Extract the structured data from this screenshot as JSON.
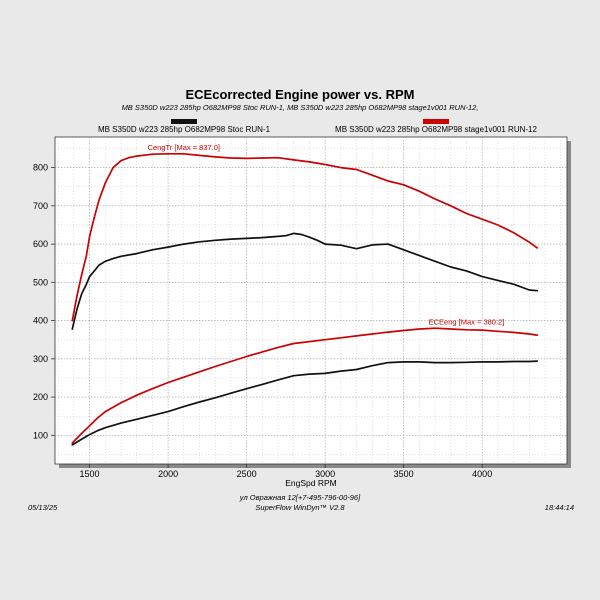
{
  "chart_data": {
    "type": "line",
    "title": "ECEcorrected Engine power vs. RPM",
    "subtitle": "MB S350D w223 285hp O682MP98 Stoc RUN-1, MB S350D w223 285hp O682MP98 stage1v001 RUN-12,",
    "xlabel": "EngSpd  RPM",
    "ylabel": "",
    "xlim": [
      1280,
      4540
    ],
    "ylim": [
      25,
      880
    ],
    "x_ticks": [
      1500,
      2000,
      2500,
      3000,
      3500,
      4000
    ],
    "y_ticks": [
      100,
      200,
      300,
      400,
      500,
      600,
      700,
      800
    ],
    "grid": true,
    "legend": {
      "placement": "top",
      "entries": [
        {
          "name": "MB S350D w223 285hp O682MP98 Stoc RUN-1",
          "color": "#111111"
        },
        {
          "name": "MB S350D w223 285hp O682MP98 stage1v001 RUN-12",
          "color": "#cc0000"
        }
      ]
    },
    "annotations": [
      {
        "text": "CengTr [Max = 837.0]",
        "color": "#cc0000",
        "x": 2100,
        "y": 846
      },
      {
        "text": "ECEeng [Max = 380.2]",
        "color": "#cc0000",
        "x": 3900,
        "y": 390
      }
    ],
    "series": [
      {
        "name": "Stoc RUN-1 torque",
        "color": "#111111",
        "x": [
          1390,
          1420,
          1450,
          1480,
          1500,
          1530,
          1560,
          1600,
          1650,
          1700,
          1800,
          1900,
          2000,
          2100,
          2200,
          2300,
          2400,
          2500,
          2600,
          2700,
          2750,
          2800,
          2850,
          2900,
          2950,
          3000,
          3100,
          3200,
          3300,
          3400,
          3500,
          3600,
          3700,
          3800,
          3900,
          4000,
          4100,
          4200,
          4300,
          4350
        ],
        "y": [
          378,
          430,
          470,
          495,
          515,
          530,
          545,
          555,
          562,
          568,
          575,
          585,
          592,
          600,
          606,
          610,
          613,
          615,
          617,
          620,
          622,
          628,
          625,
          618,
          610,
          600,
          597,
          588,
          598,
          600,
          585,
          570,
          555,
          540,
          530,
          515,
          505,
          495,
          480,
          478
        ]
      },
      {
        "name": "stage1v001 RUN-12 torque",
        "color": "#cc0000",
        "x": [
          1390,
          1420,
          1450,
          1480,
          1500,
          1530,
          1560,
          1600,
          1650,
          1700,
          1750,
          1800,
          1900,
          2000,
          2100,
          2200,
          2300,
          2400,
          2500,
          2600,
          2700,
          2800,
          2900,
          3000,
          3100,
          3200,
          3300,
          3400,
          3500,
          3600,
          3700,
          3800,
          3900,
          4000,
          4100,
          4200,
          4300,
          4350
        ],
        "y": [
          400,
          465,
          520,
          570,
          620,
          670,
          715,
          760,
          800,
          818,
          826,
          830,
          835,
          836,
          836,
          832,
          828,
          825,
          824,
          825,
          826,
          820,
          815,
          808,
          800,
          795,
          780,
          765,
          755,
          738,
          718,
          700,
          680,
          665,
          650,
          630,
          605,
          590
        ]
      },
      {
        "name": "Stoc RUN-1 power",
        "color": "#111111",
        "x": [
          1390,
          1450,
          1500,
          1550,
          1600,
          1700,
          1800,
          1900,
          2000,
          2100,
          2200,
          2300,
          2400,
          2500,
          2600,
          2700,
          2800,
          2900,
          3000,
          3100,
          3200,
          3300,
          3400,
          3500,
          3600,
          3700,
          3800,
          3900,
          4000,
          4100,
          4200,
          4300,
          4350
        ],
        "y": [
          75,
          90,
          102,
          112,
          120,
          132,
          142,
          152,
          162,
          175,
          187,
          198,
          210,
          222,
          233,
          245,
          256,
          260,
          262,
          268,
          272,
          282,
          290,
          292,
          292,
          290,
          290,
          291,
          292,
          292,
          293,
          293,
          294
        ]
      },
      {
        "name": "stage1v001 RUN-12 power",
        "color": "#cc0000",
        "x": [
          1390,
          1450,
          1500,
          1550,
          1600,
          1700,
          1800,
          1900,
          2000,
          2100,
          2200,
          2300,
          2400,
          2500,
          2600,
          2700,
          2800,
          2900,
          3000,
          3100,
          3200,
          3300,
          3400,
          3500,
          3600,
          3700,
          3800,
          3900,
          4000,
          4100,
          4200,
          4300,
          4350
        ],
        "y": [
          80,
          105,
          125,
          145,
          162,
          185,
          205,
          222,
          238,
          252,
          266,
          280,
          293,
          306,
          318,
          330,
          340,
          345,
          350,
          355,
          360,
          365,
          370,
          374,
          378,
          380,
          378,
          376,
          375,
          372,
          369,
          365,
          362
        ]
      }
    ]
  },
  "footer": {
    "date": "05/13/25",
    "address": "ул Овражная 12[+7-495-796-00-96]",
    "software": "SuperFlow WinDyn™ V2.8",
    "time": "18:44:14"
  }
}
